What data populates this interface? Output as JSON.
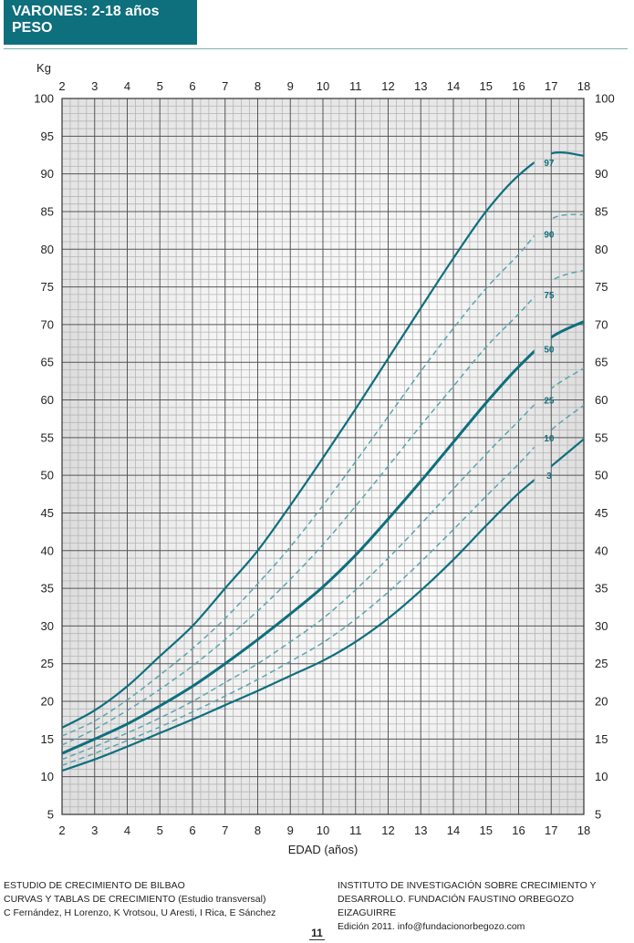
{
  "header": {
    "title_line1": "VARONES: 2-18 años",
    "title_line2": "PESO",
    "accent_color": "#0e6f7d"
  },
  "chart_data": {
    "type": "line",
    "title": "VARONES: 2-18 años — PESO",
    "xlabel": "EDAD (años)",
    "ylabel": "Kg",
    "xlim": [
      2,
      18
    ],
    "ylim": [
      5,
      100
    ],
    "x_ticks": [
      2,
      3,
      4,
      5,
      6,
      7,
      8,
      9,
      10,
      11,
      12,
      13,
      14,
      15,
      16,
      17,
      18
    ],
    "y_ticks": [
      5,
      10,
      15,
      20,
      25,
      30,
      35,
      40,
      45,
      50,
      55,
      60,
      65,
      70,
      75,
      80,
      85,
      90,
      95,
      100
    ],
    "grid": true,
    "minor_grid": {
      "x_step": 0.25,
      "y_step": 1
    },
    "legend_position": "inline labels near age 16.6",
    "x": [
      2,
      3,
      4,
      5,
      6,
      7,
      8,
      9,
      10,
      11,
      12,
      13,
      14,
      15,
      16,
      17,
      18
    ],
    "series": [
      {
        "name": "97",
        "style": "solid",
        "label_pos": [
          16.6,
          91.5
        ],
        "values": [
          16.5,
          18.8,
          22.0,
          26.0,
          30.0,
          35.0,
          40.0,
          46.0,
          52.3,
          58.8,
          65.5,
          72.2,
          78.8,
          85.0,
          89.8,
          92.7,
          92.4
        ]
      },
      {
        "name": "90",
        "style": "dashed",
        "label_pos": [
          16.6,
          82.0
        ],
        "values": [
          15.4,
          17.4,
          20.2,
          23.5,
          27.0,
          31.0,
          35.6,
          40.5,
          46.0,
          51.8,
          57.8,
          63.8,
          69.5,
          74.8,
          79.3,
          84.0,
          84.6
        ]
      },
      {
        "name": "75",
        "style": "dashed",
        "label_pos": [
          16.6,
          74.0
        ],
        "values": [
          14.2,
          16.3,
          18.8,
          21.6,
          24.7,
          28.2,
          32.0,
          36.2,
          40.8,
          45.9,
          51.2,
          56.6,
          61.8,
          67.0,
          71.4,
          75.8,
          77.2
        ]
      },
      {
        "name": "50",
        "style": "solid-bold",
        "label_pos": [
          16.6,
          66.8
        ],
        "values": [
          13.1,
          15.0,
          17.0,
          19.4,
          22.0,
          25.0,
          28.2,
          31.6,
          35.2,
          39.4,
          44.2,
          49.2,
          54.4,
          59.6,
          64.4,
          68.3,
          70.4
        ]
      },
      {
        "name": "25",
        "style": "dashed",
        "label_pos": [
          16.6,
          60.0
        ],
        "values": [
          12.3,
          14.0,
          15.8,
          17.8,
          20.0,
          22.5,
          25.0,
          27.9,
          31.0,
          34.8,
          39.0,
          43.5,
          48.2,
          52.8,
          57.2,
          61.5,
          64.2
        ]
      },
      {
        "name": "10",
        "style": "dashed",
        "label_pos": [
          16.6,
          55.0
        ],
        "values": [
          11.5,
          13.1,
          14.8,
          16.6,
          18.6,
          20.7,
          22.9,
          25.3,
          27.8,
          30.9,
          34.5,
          38.5,
          42.8,
          47.2,
          51.5,
          56.0,
          59.3
        ]
      },
      {
        "name": "3",
        "style": "solid",
        "label_pos": [
          16.6,
          50.0
        ],
        "values": [
          10.8,
          12.3,
          14.0,
          15.8,
          17.6,
          19.5,
          21.4,
          23.4,
          25.4,
          27.9,
          31.0,
          34.7,
          38.8,
          43.3,
          47.6,
          51.2,
          54.8
        ]
      }
    ],
    "colors": {
      "line": "#0e6f7d",
      "dashed": "#5aa5b0",
      "grid_major": "#555555",
      "grid_minor": "#b5b5b5",
      "bg_shade": "#e4e4e4"
    }
  },
  "footer": {
    "left": [
      "ESTUDIO DE CRECIMIENTO DE BILBAO",
      "CURVAS Y TABLAS DE CRECIMIENTO (Estudio transversal)",
      "C Fernández, H Lorenzo, K Vrotsou, U Aresti, I Rica, E Sánchez"
    ],
    "right": [
      "INSTITUTO DE INVESTIGACIÓN SOBRE CRECIMIENTO Y",
      "DESARROLLO. FUNDACIÓN FAUSTINO ORBEGOZO EIZAGUIRRE",
      "Edición 2011. info@fundacionorbegozo.com"
    ],
    "page_number": "11"
  }
}
